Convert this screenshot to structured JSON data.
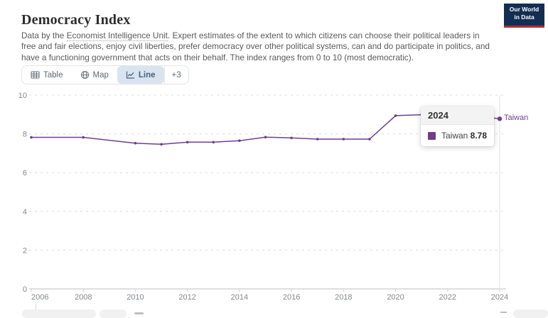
{
  "header": {
    "title": "Democracy Index",
    "subtitle_prefix": "Data by the ",
    "subtitle_link": "Economist Intelligence Unit",
    "subtitle_suffix": ". Expert estimates of the extent to which citizens can choose their political leaders in free and fair elections, enjoy civil liberties, prefer democracy over other political systems, can and do participate in politics, and have a functioning government that acts on their behalf. The index ranges from 0 to 10 (most democratic).",
    "logo": {
      "line1": "Our World",
      "line2": "in Data"
    }
  },
  "tabs": {
    "table": "Table",
    "map": "Map",
    "line": "Line",
    "more": "+3"
  },
  "tooltip": {
    "year": "2024",
    "series": "Taiwan",
    "value": "8.78"
  },
  "colors": {
    "series": "#6d3e91",
    "active_tab_bg": "#d9e4f0",
    "logo_bg": "#132e52",
    "logo_red": "#ac2d31",
    "gridline": "#dcdcdc",
    "axis": "#bfbfbf",
    "tick_label": "#84878c",
    "hover_line": "#e0e0e0"
  },
  "chart_data": {
    "type": "line",
    "title": "Democracy Index",
    "xlabel": "",
    "ylabel": "",
    "xlim": [
      2006,
      2024
    ],
    "ylim": [
      0,
      10
    ],
    "xticks": [
      2006,
      2008,
      2010,
      2012,
      2014,
      2016,
      2018,
      2020,
      2022,
      2024
    ],
    "yticks": [
      0,
      2,
      4,
      6,
      8,
      10
    ],
    "grid": "horizontal-dashed",
    "legend_position": "end-of-line-label",
    "hover_year": 2024,
    "series": [
      {
        "name": "Taiwan",
        "color": "#6d3e91",
        "points": [
          [
            2006,
            7.82
          ],
          [
            2008,
            7.82
          ],
          [
            2010,
            7.52
          ],
          [
            2011,
            7.46
          ],
          [
            2012,
            7.57
          ],
          [
            2013,
            7.57
          ],
          [
            2014,
            7.65
          ],
          [
            2015,
            7.83
          ],
          [
            2016,
            7.79
          ],
          [
            2017,
            7.73
          ],
          [
            2018,
            7.73
          ],
          [
            2019,
            7.73
          ],
          [
            2020,
            8.94
          ],
          [
            2021,
            8.99
          ],
          [
            2022,
            8.99
          ],
          [
            2023,
            8.92
          ],
          [
            2024,
            8.78
          ]
        ]
      }
    ]
  }
}
